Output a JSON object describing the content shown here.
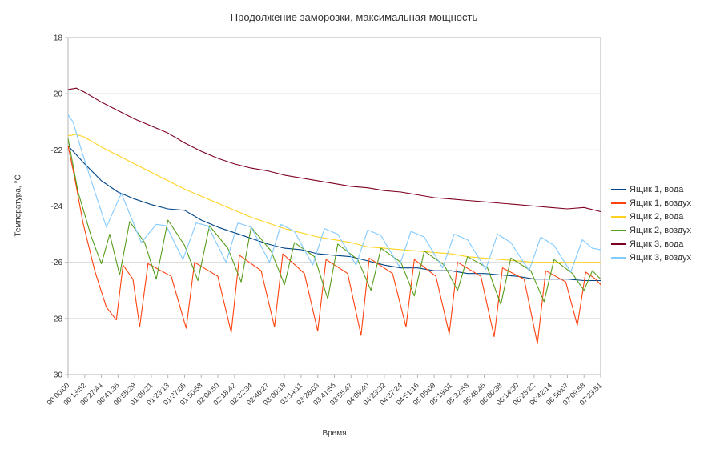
{
  "chart_data": {
    "type": "line",
    "title": "Продолжение заморозки, максимальная мощность",
    "xlabel": "Время",
    "ylabel": "Температура, °C",
    "ylim": [
      -30,
      -18
    ],
    "y_ticks": [
      -18,
      -20,
      -22,
      -24,
      -26,
      -28,
      -30
    ],
    "grid": "horizontal-major",
    "legend_position": "right",
    "axis_color": "#b3b3b3",
    "grid_color": "#d9d9d9",
    "text_color": "#333333",
    "x_tick_labels": [
      "00:00:00",
      "00:13:52",
      "00:27:44",
      "00:41:36",
      "00:55:29",
      "01:09:21",
      "01:23:13",
      "01:37:05",
      "01:50:58",
      "02:04:50",
      "02:18:42",
      "02:32:34",
      "02:46:27",
      "03:00:18",
      "03:14:11",
      "03:28:03",
      "03:41:56",
      "03:55:47",
      "04:09:40",
      "04:23:32",
      "04:37:24",
      "04:51:16",
      "05:05:09",
      "05:19:01",
      "05:32:53",
      "05:46:45",
      "06:00:38",
      "06:14:30",
      "06:28:22",
      "06:42:14",
      "06:56:07",
      "07:09:58",
      "07:23:51"
    ],
    "series": [
      {
        "name": "Ящик 1, вода",
        "color": "#004586",
        "points": [
          [
            0,
            -21.85
          ],
          [
            1,
            -22.5
          ],
          [
            2,
            -23.1
          ],
          [
            3,
            -23.5
          ],
          [
            4,
            -23.75
          ],
          [
            5,
            -23.95
          ],
          [
            6,
            -24.1
          ],
          [
            7,
            -24.15
          ],
          [
            8,
            -24.5
          ],
          [
            9,
            -24.75
          ],
          [
            10,
            -24.95
          ],
          [
            11,
            -25.15
          ],
          [
            12,
            -25.35
          ],
          [
            13,
            -25.5
          ],
          [
            14,
            -25.55
          ],
          [
            15,
            -25.7
          ],
          [
            16,
            -25.75
          ],
          [
            17,
            -25.8
          ],
          [
            18,
            -25.95
          ],
          [
            19,
            -26.1
          ],
          [
            20,
            -26.2
          ],
          [
            21,
            -26.2
          ],
          [
            22,
            -26.3
          ],
          [
            23,
            -26.3
          ],
          [
            24,
            -26.4
          ],
          [
            25,
            -26.4
          ],
          [
            26,
            -26.45
          ],
          [
            27,
            -26.5
          ],
          [
            28,
            -26.6
          ],
          [
            29,
            -26.6
          ],
          [
            30,
            -26.6
          ],
          [
            31,
            -26.65
          ],
          [
            32,
            -26.65
          ]
        ]
      },
      {
        "name": "Ящик 1, воздух",
        "color": "#ff420e",
        "points": [
          [
            0,
            -21.85
          ],
          [
            0.4,
            -23.0
          ],
          [
            0.9,
            -24.6
          ],
          [
            1.6,
            -26.3
          ],
          [
            2.3,
            -27.6
          ],
          [
            2.9,
            -28.05
          ],
          [
            3.3,
            -26.1
          ],
          [
            3.9,
            -26.6
          ],
          [
            4.3,
            -28.3
          ],
          [
            4.8,
            -26.05
          ],
          [
            6.2,
            -26.5
          ],
          [
            7.1,
            -28.35
          ],
          [
            7.6,
            -26.0
          ],
          [
            9.0,
            -26.5
          ],
          [
            9.8,
            -28.5
          ],
          [
            10.3,
            -25.75
          ],
          [
            11.6,
            -26.3
          ],
          [
            12.4,
            -28.3
          ],
          [
            12.9,
            -25.7
          ],
          [
            14.2,
            -26.4
          ],
          [
            15.0,
            -28.45
          ],
          [
            15.5,
            -25.9
          ],
          [
            16.8,
            -26.4
          ],
          [
            17.6,
            -28.6
          ],
          [
            18.1,
            -25.85
          ],
          [
            19.5,
            -26.4
          ],
          [
            20.3,
            -28.3
          ],
          [
            20.8,
            -25.9
          ],
          [
            22.1,
            -26.5
          ],
          [
            22.9,
            -28.55
          ],
          [
            23.4,
            -26.0
          ],
          [
            24.8,
            -26.5
          ],
          [
            25.6,
            -28.65
          ],
          [
            26.1,
            -26.2
          ],
          [
            27.4,
            -26.6
          ],
          [
            28.2,
            -28.9
          ],
          [
            28.7,
            -26.3
          ],
          [
            29.9,
            -26.7
          ],
          [
            30.6,
            -28.25
          ],
          [
            31.1,
            -26.35
          ],
          [
            31.7,
            -26.6
          ],
          [
            32,
            -26.8
          ]
        ]
      },
      {
        "name": "Ящик 2, вода",
        "color": "#ffd320",
        "points": [
          [
            0,
            -21.5
          ],
          [
            0.5,
            -21.45
          ],
          [
            1,
            -21.55
          ],
          [
            2,
            -21.9
          ],
          [
            3,
            -22.2
          ],
          [
            4,
            -22.5
          ],
          [
            5,
            -22.8
          ],
          [
            6,
            -23.1
          ],
          [
            7,
            -23.4
          ],
          [
            8,
            -23.65
          ],
          [
            9,
            -23.9
          ],
          [
            10,
            -24.15
          ],
          [
            11,
            -24.4
          ],
          [
            12,
            -24.6
          ],
          [
            13,
            -24.8
          ],
          [
            14,
            -24.95
          ],
          [
            15,
            -25.1
          ],
          [
            16,
            -25.2
          ],
          [
            17,
            -25.3
          ],
          [
            18,
            -25.45
          ],
          [
            19,
            -25.5
          ],
          [
            20,
            -25.55
          ],
          [
            21,
            -25.6
          ],
          [
            22,
            -25.65
          ],
          [
            23,
            -25.7
          ],
          [
            24,
            -25.8
          ],
          [
            25,
            -25.85
          ],
          [
            26,
            -25.9
          ],
          [
            27,
            -25.95
          ],
          [
            28,
            -26.0
          ],
          [
            29,
            -26.0
          ],
          [
            30,
            -26.0
          ],
          [
            31,
            -26.0
          ],
          [
            32,
            -26.0
          ]
        ]
      },
      {
        "name": "Ящик 2, воздух",
        "color": "#579d1c",
        "points": [
          [
            0,
            -21.6
          ],
          [
            0.6,
            -23.5
          ],
          [
            1.4,
            -25.1
          ],
          [
            2.0,
            -26.05
          ],
          [
            2.5,
            -25.0
          ],
          [
            3.1,
            -26.45
          ],
          [
            3.7,
            -24.55
          ],
          [
            4.6,
            -25.3
          ],
          [
            5.3,
            -26.6
          ],
          [
            6.0,
            -24.5
          ],
          [
            7.0,
            -25.4
          ],
          [
            7.8,
            -26.65
          ],
          [
            8.5,
            -24.7
          ],
          [
            9.6,
            -25.5
          ],
          [
            10.4,
            -26.7
          ],
          [
            11.0,
            -24.75
          ],
          [
            12.2,
            -25.6
          ],
          [
            13.0,
            -26.8
          ],
          [
            13.6,
            -25.3
          ],
          [
            14.8,
            -25.8
          ],
          [
            15.6,
            -27.3
          ],
          [
            16.2,
            -25.35
          ],
          [
            17.4,
            -25.9
          ],
          [
            18.2,
            -27.0
          ],
          [
            18.8,
            -25.5
          ],
          [
            20.0,
            -26.0
          ],
          [
            20.8,
            -27.2
          ],
          [
            21.4,
            -25.6
          ],
          [
            22.6,
            -26.1
          ],
          [
            23.4,
            -27.0
          ],
          [
            24.0,
            -25.8
          ],
          [
            25.2,
            -26.2
          ],
          [
            26.0,
            -27.5
          ],
          [
            26.6,
            -25.85
          ],
          [
            27.8,
            -26.3
          ],
          [
            28.6,
            -27.4
          ],
          [
            29.2,
            -25.9
          ],
          [
            30.3,
            -26.4
          ],
          [
            31.0,
            -27.0
          ],
          [
            31.5,
            -26.3
          ],
          [
            32,
            -26.6
          ]
        ]
      },
      {
        "name": "Ящик 3, вода",
        "color": "#7e0021",
        "points": [
          [
            0,
            -19.85
          ],
          [
            0.5,
            -19.8
          ],
          [
            1,
            -19.95
          ],
          [
            2,
            -20.3
          ],
          [
            3,
            -20.6
          ],
          [
            4,
            -20.9
          ],
          [
            5,
            -21.15
          ],
          [
            6,
            -21.4
          ],
          [
            7,
            -21.75
          ],
          [
            8,
            -22.05
          ],
          [
            9,
            -22.3
          ],
          [
            10,
            -22.5
          ],
          [
            11,
            -22.65
          ],
          [
            12,
            -22.75
          ],
          [
            13,
            -22.9
          ],
          [
            14,
            -23.0
          ],
          [
            15,
            -23.1
          ],
          [
            16,
            -23.2
          ],
          [
            17,
            -23.3
          ],
          [
            18,
            -23.35
          ],
          [
            19,
            -23.45
          ],
          [
            20,
            -23.5
          ],
          [
            21,
            -23.6
          ],
          [
            22,
            -23.7
          ],
          [
            23,
            -23.75
          ],
          [
            24,
            -23.8
          ],
          [
            25,
            -23.85
          ],
          [
            26,
            -23.9
          ],
          [
            27,
            -23.95
          ],
          [
            28,
            -24.0
          ],
          [
            29,
            -24.05
          ],
          [
            30,
            -24.1
          ],
          [
            31,
            -24.05
          ],
          [
            32,
            -24.2
          ]
        ]
      },
      {
        "name": "Ящик 3, воздух",
        "color": "#83caff",
        "points": [
          [
            0,
            -20.75
          ],
          [
            0.3,
            -21.0
          ],
          [
            0.8,
            -22.0
          ],
          [
            1.5,
            -23.3
          ],
          [
            2.3,
            -24.75
          ],
          [
            3.2,
            -23.55
          ],
          [
            4.4,
            -25.3
          ],
          [
            5.3,
            -24.65
          ],
          [
            5.9,
            -24.7
          ],
          [
            6.9,
            -25.9
          ],
          [
            7.7,
            -24.6
          ],
          [
            8.4,
            -24.7
          ],
          [
            9.5,
            -26.0
          ],
          [
            10.2,
            -24.6
          ],
          [
            11.0,
            -24.75
          ],
          [
            12.1,
            -26.0
          ],
          [
            12.8,
            -24.65
          ],
          [
            13.6,
            -24.9
          ],
          [
            14.7,
            -26.1
          ],
          [
            15.4,
            -24.8
          ],
          [
            16.2,
            -25.0
          ],
          [
            17.3,
            -26.1
          ],
          [
            18.0,
            -24.85
          ],
          [
            18.8,
            -25.05
          ],
          [
            19.9,
            -26.15
          ],
          [
            20.6,
            -24.9
          ],
          [
            21.4,
            -25.1
          ],
          [
            22.5,
            -26.2
          ],
          [
            23.2,
            -25.0
          ],
          [
            24.0,
            -25.2
          ],
          [
            25.1,
            -26.25
          ],
          [
            25.8,
            -25.0
          ],
          [
            26.6,
            -25.3
          ],
          [
            27.7,
            -26.3
          ],
          [
            28.4,
            -25.1
          ],
          [
            29.2,
            -25.4
          ],
          [
            30.2,
            -26.35
          ],
          [
            30.9,
            -25.2
          ],
          [
            31.5,
            -25.5
          ],
          [
            32,
            -25.55
          ]
        ]
      }
    ]
  }
}
